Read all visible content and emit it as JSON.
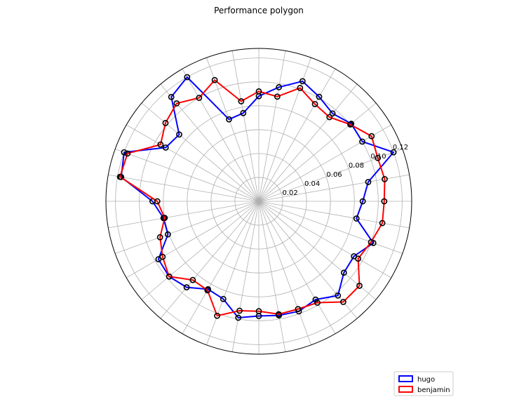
{
  "chart_data": {
    "type": "polar-line",
    "title": "Performance polygon",
    "theta_labels_visible": false,
    "num_spokes": 36,
    "r_range": [
      0,
      0.128
    ],
    "r_ticks": [
      0.02,
      0.04,
      0.06,
      0.08,
      0.1,
      0.12
    ],
    "r_tick_labels": [
      "0.02",
      "0.04",
      "0.06",
      "0.08",
      "0.10",
      "0.12"
    ],
    "grid": true,
    "legend_position": "bottom-right",
    "markers": "open-circle",
    "series": [
      {
        "name": "hugo",
        "color": "#0000ff",
        "values": [
          0.087,
          0.093,
          0.12,
          0.1,
          0.101,
          0.096,
          0.101,
          0.107,
          0.097,
          0.088,
          0.075,
          0.073,
          0.12,
          0.114,
          0.087,
          0.09,
          0.12,
          0.117,
          0.089,
          0.081,
          0.081,
          0.097,
          0.098,
          0.094,
          0.085,
          0.087,
          0.099,
          0.096,
          0.097,
          0.098,
          0.095,
          0.103,
          0.093,
          0.092,
          0.102,
          0.083
        ]
      },
      {
        "name": "benjamin",
        "color": "#ff0000",
        "values": [
          0.105,
          0.107,
          0.106,
          0.109,
          0.1,
          0.092,
          0.094,
          0.101,
          0.089,
          0.092,
          0.085,
          0.108,
          0.1,
          0.107,
          0.102,
          0.095,
          0.117,
          0.118,
          0.085,
          0.08,
          0.088,
          0.093,
          0.098,
          0.086,
          0.086,
          0.102,
          0.093,
          0.092,
          0.096,
          0.096,
          0.098,
          0.11,
          0.11,
          0.096,
          0.1,
          0.105
        ]
      }
    ]
  }
}
